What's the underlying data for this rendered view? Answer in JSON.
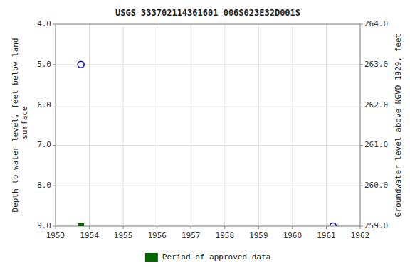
{
  "chart_data": {
    "type": "scatter",
    "title": "USGS 333702114361601 006S023E32D001S",
    "ylabel": "Depth to water level, feet below land\n surface",
    "y2label": "Groundwater level above NGVD 1929, feet",
    "xlim": [
      1953,
      1962
    ],
    "xticks": [
      1953,
      1954,
      1955,
      1956,
      1957,
      1958,
      1959,
      1960,
      1961,
      1962
    ],
    "ylim": [
      9.0,
      4.0
    ],
    "yticks": [
      {
        "value": 4.0,
        "label": "4.0"
      },
      {
        "value": 5.0,
        "label": "5.0"
      },
      {
        "value": 6.0,
        "label": "6.0"
      },
      {
        "value": 7.0,
        "label": "7.0"
      },
      {
        "value": 8.0,
        "label": "8.0"
      },
      {
        "value": 9.0,
        "label": "9.0"
      }
    ],
    "y2lim": [
      259.0,
      264.0
    ],
    "y2ticks": [
      {
        "value": 264.0,
        "label": "264.0"
      },
      {
        "value": 263.0,
        "label": "263.0"
      },
      {
        "value": 262.0,
        "label": "262.0"
      },
      {
        "value": 261.0,
        "label": "261.0"
      },
      {
        "value": 260.0,
        "label": "260.0"
      },
      {
        "value": 259.0,
        "label": "259.0"
      }
    ],
    "grid": true,
    "legend": "bottom",
    "series": [
      {
        "x": [
          1953.75,
          1961.2
        ],
        "values": [
          5.0,
          9.0
        ],
        "color": "#0000cc",
        "marker": "open-circle"
      },
      {
        "name": "Period of approved data",
        "x": [
          1953.75
        ],
        "values": [
          9.0
        ],
        "color": "#006600",
        "marker": "square"
      }
    ]
  }
}
